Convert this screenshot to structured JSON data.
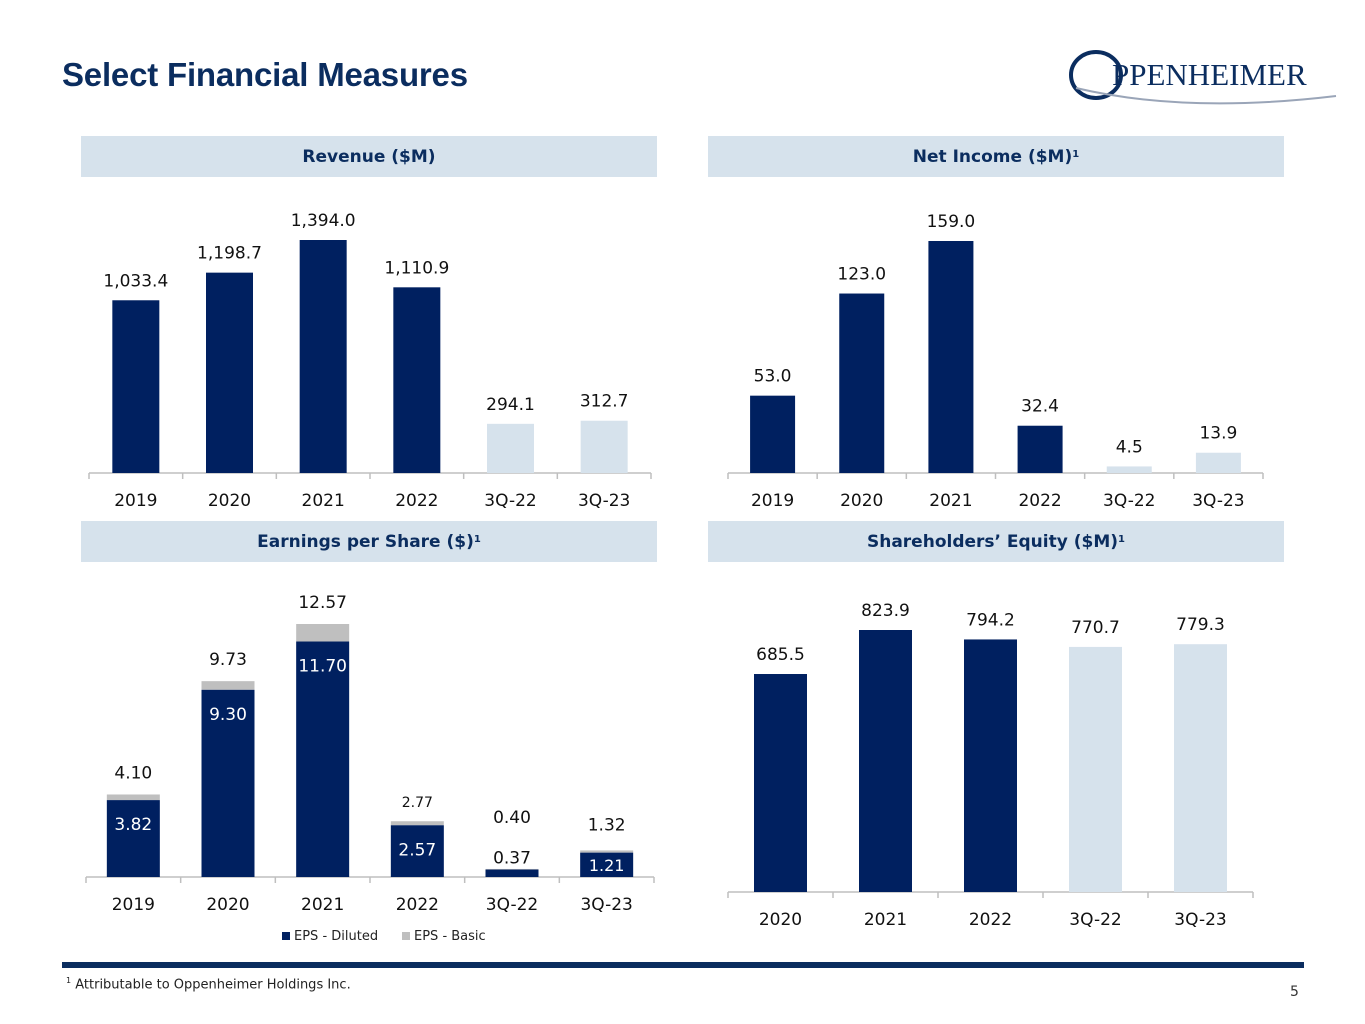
{
  "page": {
    "title": "Select Financial Measures",
    "page_number": "5",
    "footnote_marker": "1",
    "footnote_text": "Attributable to Oppenheimer Holdings Inc."
  },
  "logo": {
    "text": "PPENHEIMER"
  },
  "colors": {
    "dark": "#0b2d5f",
    "bar_dark": "#002060",
    "bar_light": "#d6e2ec",
    "basic": "#bfbfbf",
    "header_bg": "#d6e2ec"
  },
  "panels": {
    "revenue": {
      "title": "Revenue ($M)",
      "sup": ""
    },
    "net_income": {
      "title": "Net Income ($M)",
      "sup": "1"
    },
    "eps": {
      "title": "Earnings per Share ($)",
      "sup": "1"
    },
    "equity": {
      "title": "Shareholders’ Equity ($M)",
      "sup": "1"
    }
  },
  "chart_data": [
    {
      "id": "revenue",
      "type": "bar",
      "title": "Revenue ($M)",
      "categories": [
        "2019",
        "2020",
        "2021",
        "2022",
        "3Q-22",
        "3Q-23"
      ],
      "values": [
        1033.4,
        1198.7,
        1394.0,
        1110.9,
        294.1,
        312.7
      ],
      "labels": [
        "1,033.4",
        "1,198.7",
        "1,394.0",
        "1,110.9",
        "294.1",
        "312.7"
      ],
      "shade": [
        "dark",
        "dark",
        "dark",
        "dark",
        "light",
        "light"
      ],
      "ylim": [
        0,
        1394.0
      ]
    },
    {
      "id": "net_income",
      "type": "bar",
      "title": "Net Income ($M)",
      "categories": [
        "2019",
        "2020",
        "2021",
        "2022",
        "3Q-22",
        "3Q-23"
      ],
      "values": [
        53.0,
        123.0,
        159.0,
        32.4,
        4.5,
        13.9
      ],
      "labels": [
        "53.0",
        "123.0",
        "159.0",
        "32.4",
        "4.5",
        "13.9"
      ],
      "shade": [
        "dark",
        "dark",
        "dark",
        "dark",
        "light",
        "light"
      ],
      "ylim": [
        0,
        159.0
      ]
    },
    {
      "id": "eps",
      "type": "bar",
      "title": "Earnings per Share ($)",
      "categories": [
        "2019",
        "2020",
        "2021",
        "2022",
        "3Q-22",
        "3Q-23"
      ],
      "series": [
        {
          "name": "EPS - Diluted",
          "values": [
            3.82,
            9.3,
            11.7,
            2.57,
            0.37,
            1.21
          ],
          "labels": [
            "3.82",
            "9.30",
            "11.70",
            "2.57",
            "0.37",
            "1.21"
          ]
        },
        {
          "name": "EPS - Basic",
          "values": [
            4.1,
            9.73,
            12.57,
            2.77,
            0.4,
            1.32
          ],
          "labels": [
            "4.10",
            "9.73",
            "12.57",
            "2.77",
            "0.40",
            "1.32"
          ]
        }
      ],
      "ylim": [
        0,
        12.57
      ],
      "legend": "bottom"
    },
    {
      "id": "equity",
      "type": "bar",
      "title": "Shareholders’ Equity ($M)",
      "categories": [
        "2020",
        "2021",
        "2022",
        "3Q-22",
        "3Q-23"
      ],
      "values": [
        685.5,
        823.9,
        794.2,
        770.7,
        779.3
      ],
      "labels": [
        "685.5",
        "823.9",
        "794.2",
        "770.7",
        "779.3"
      ],
      "shade": [
        "dark",
        "dark",
        "dark",
        "light",
        "light"
      ],
      "ylim": [
        0,
        823.9
      ]
    }
  ]
}
